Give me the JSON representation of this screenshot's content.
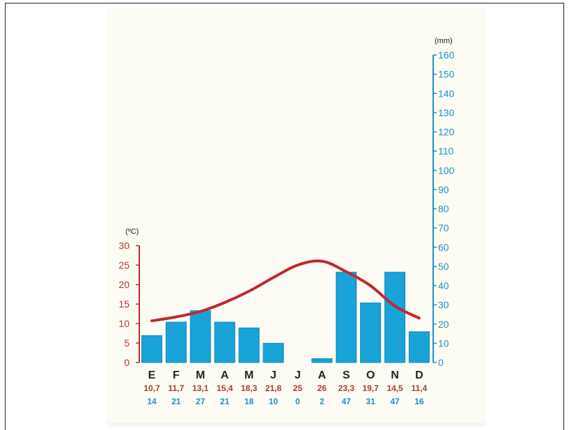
{
  "colors": {
    "temperature": "#c0282d",
    "temperature_label": "#b23a30",
    "precipitation": "#1aa3d6",
    "precipitation_label": "#1f8fc4",
    "axis_text": "#222222",
    "paper": "#fcfcf4"
  },
  "chart_data": {
    "type": "bar",
    "categories": [
      "E",
      "F",
      "M",
      "A",
      "M",
      "J",
      "J",
      "A",
      "S",
      "O",
      "N",
      "D"
    ],
    "series": [
      {
        "kind": "line",
        "axis": "left",
        "values": [
          10.7,
          11.7,
          13.1,
          15.4,
          18.3,
          21.8,
          25,
          26,
          23.3,
          19.7,
          14.5,
          11.4
        ],
        "labels": [
          "10,7",
          "11,7",
          "13,1",
          "15,4",
          "18,3",
          "21,8",
          "25",
          "26",
          "23,3",
          "19,7",
          "14,5",
          "11,4"
        ]
      },
      {
        "kind": "bar",
        "axis": "right",
        "values": [
          14,
          21,
          27,
          21,
          18,
          10,
          0,
          2,
          47,
          31,
          47,
          16
        ],
        "labels": [
          "14",
          "21",
          "27",
          "21",
          "18",
          "10",
          "0",
          "2",
          "47",
          "31",
          "47",
          "16"
        ]
      }
    ],
    "left_axis": {
      "unit": "(ºC)",
      "ylim": [
        0,
        30
      ],
      "ticks": [
        "0",
        "5",
        "10",
        "15",
        "20",
        "25",
        "30"
      ]
    },
    "right_axis": {
      "unit": "(mm)",
      "ylim": [
        0,
        160
      ],
      "ticks": [
        "0",
        "10",
        "20",
        "30",
        "40",
        "50",
        "60",
        "70",
        "80",
        "90",
        "100",
        "110",
        "120",
        "130",
        "140",
        "150",
        "160"
      ]
    },
    "grid": false
  }
}
